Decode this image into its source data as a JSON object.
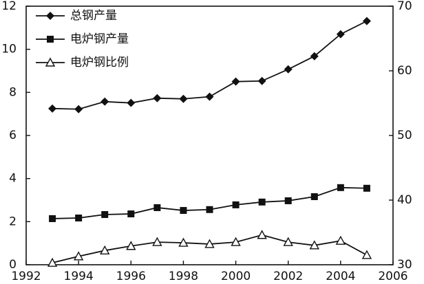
{
  "chart_data": {
    "type": "line",
    "x": [
      1993,
      1994,
      1995,
      1996,
      1997,
      1998,
      1999,
      2000,
      2001,
      2002,
      2003,
      2004,
      2005
    ],
    "series": [
      {
        "name": "总钢产量",
        "color": "#111111",
        "marker": "diamond",
        "values": [
          7.25,
          7.22,
          7.57,
          7.51,
          7.73,
          7.7,
          7.8,
          8.5,
          8.53,
          9.07,
          9.68,
          10.7,
          11.31
        ]
      },
      {
        "name": "电炉钢产量",
        "color": "#111111",
        "marker": "square",
        "values": [
          2.14,
          2.17,
          2.33,
          2.36,
          2.65,
          2.52,
          2.56,
          2.78,
          2.91,
          2.97,
          3.16,
          3.58,
          3.55
        ]
      },
      {
        "name": "电炉钢比例",
        "color": "#111111",
        "marker": "triangle-open",
        "axis": "y2",
        "values": [
          30.3,
          31.3,
          32.2,
          32.9,
          33.5,
          33.4,
          33.2,
          33.5,
          34.6,
          33.5,
          33.0,
          33.7,
          31.5
        ]
      }
    ],
    "xlim": [
      1992,
      2006
    ],
    "xticks": [
      1992,
      1994,
      1996,
      1998,
      2000,
      2002,
      2004,
      2006
    ],
    "ylim": [
      0,
      12
    ],
    "yticks": [
      0,
      2,
      4,
      6,
      8,
      10,
      12
    ],
    "y2lim": [
      30,
      70
    ],
    "y2ticks": [
      30,
      40,
      50,
      60,
      70
    ],
    "legend": "upper left"
  }
}
